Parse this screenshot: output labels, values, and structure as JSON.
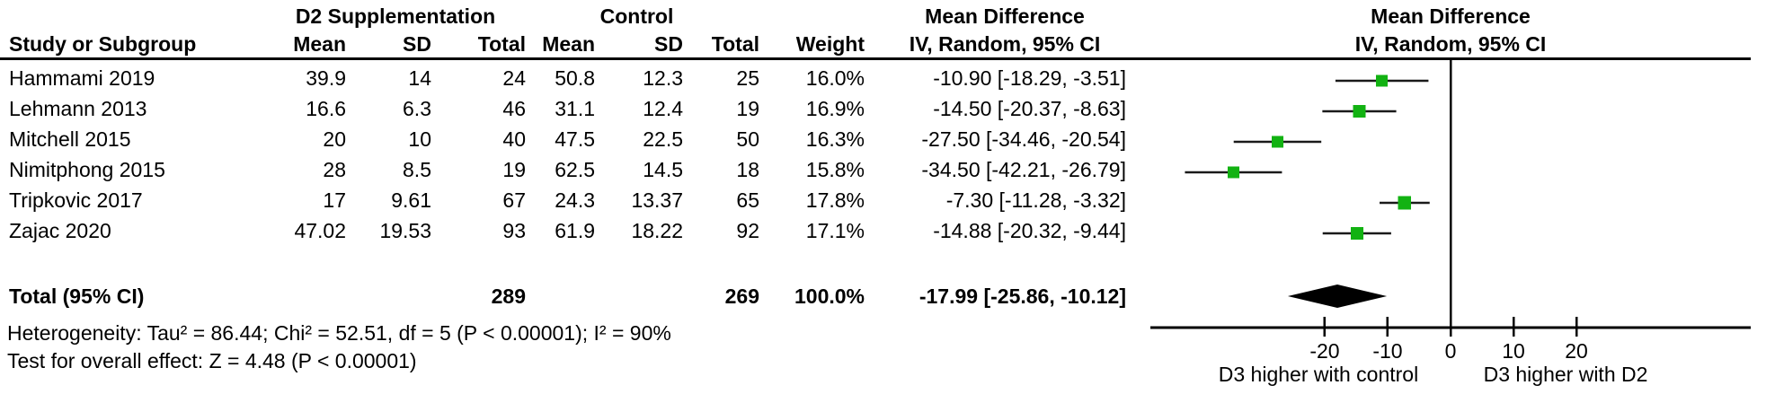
{
  "header": {
    "group_d2": "D2 Supplementation",
    "group_control": "Control",
    "col_study": "Study or Subgroup",
    "col_mean": "Mean",
    "col_sd": "SD",
    "col_total": "Total",
    "col_weight": "Weight",
    "md_col_title": "Mean Difference",
    "md_col_subtitle": "IV, Random, 95% CI",
    "plot_title": "Mean Difference",
    "plot_subtitle": "IV, Random, 95% CI"
  },
  "chart_data": {
    "type": "scatter",
    "chart_kind": "forest-plot",
    "title": "Mean Difference",
    "subtitle": "IV, Random, 95% CI",
    "xlim": [
      -47.7,
      47.7
    ],
    "ticks": [
      -20,
      -10,
      0,
      10,
      20
    ],
    "grid": false,
    "direction_labels": {
      "left": "D3 higher with control",
      "right": "D3 higher with D2"
    },
    "marker_color": "#12B212",
    "line_color": "#1a1a1a",
    "axis_color": "#000000",
    "studies": [
      {
        "name": "Hammami 2019",
        "d2_mean": "39.9",
        "d2_sd": "14",
        "d2_total": "24",
        "ctrl_mean": "50.8",
        "ctrl_sd": "12.3",
        "ctrl_total": "25",
        "weight": "16.0%",
        "weight_pct": 16.0,
        "md": -10.9,
        "ci_low": -18.29,
        "ci_high": -3.51,
        "ci_text": "-10.90 [-18.29, -3.51]"
      },
      {
        "name": "Lehmann 2013",
        "d2_mean": "16.6",
        "d2_sd": "6.3",
        "d2_total": "46",
        "ctrl_mean": "31.1",
        "ctrl_sd": "12.4",
        "ctrl_total": "19",
        "weight": "16.9%",
        "weight_pct": 16.9,
        "md": -14.5,
        "ci_low": -20.37,
        "ci_high": -8.63,
        "ci_text": "-14.50 [-20.37, -8.63]"
      },
      {
        "name": "Mitchell 2015",
        "d2_mean": "20",
        "d2_sd": "10",
        "d2_total": "40",
        "ctrl_mean": "47.5",
        "ctrl_sd": "22.5",
        "ctrl_total": "50",
        "weight": "16.3%",
        "weight_pct": 16.3,
        "md": -27.5,
        "ci_low": -34.46,
        "ci_high": -20.54,
        "ci_text": "-27.50 [-34.46, -20.54]"
      },
      {
        "name": "Nimitphong 2015",
        "d2_mean": "28",
        "d2_sd": "8.5",
        "d2_total": "19",
        "ctrl_mean": "62.5",
        "ctrl_sd": "14.5",
        "ctrl_total": "18",
        "weight": "15.8%",
        "weight_pct": 15.8,
        "md": -34.5,
        "ci_low": -42.21,
        "ci_high": -26.79,
        "ci_text": "-34.50 [-42.21, -26.79]"
      },
      {
        "name": "Tripkovic 2017",
        "d2_mean": "17",
        "d2_sd": "9.61",
        "d2_total": "67",
        "ctrl_mean": "24.3",
        "ctrl_sd": "13.37",
        "ctrl_total": "65",
        "weight": "17.8%",
        "weight_pct": 17.8,
        "md": -7.3,
        "ci_low": -11.28,
        "ci_high": -3.32,
        "ci_text": "-7.30 [-11.28, -3.32]"
      },
      {
        "name": "Zajac 2020",
        "d2_mean": "47.02",
        "d2_sd": "19.53",
        "d2_total": "93",
        "ctrl_mean": "61.9",
        "ctrl_sd": "18.22",
        "ctrl_total": "92",
        "weight": "17.1%",
        "weight_pct": 17.1,
        "md": -14.88,
        "ci_low": -20.32,
        "ci_high": -9.44,
        "ci_text": "-14.88 [-20.32, -9.44]"
      }
    ],
    "total": {
      "label": "Total (95% CI)",
      "d2_total": "289",
      "ctrl_total": "269",
      "weight": "100.0%",
      "md": -17.99,
      "ci_low": -25.86,
      "ci_high": -10.12,
      "ci_text": "-17.99 [-25.86, -10.12]"
    },
    "heterogeneity": "Heterogeneity: Tau² = 86.44; Chi² = 52.51, df = 5 (P < 0.00001); I² = 90%",
    "overall_effect": "Test for overall effect: Z = 4.48 (P < 0.00001)"
  }
}
